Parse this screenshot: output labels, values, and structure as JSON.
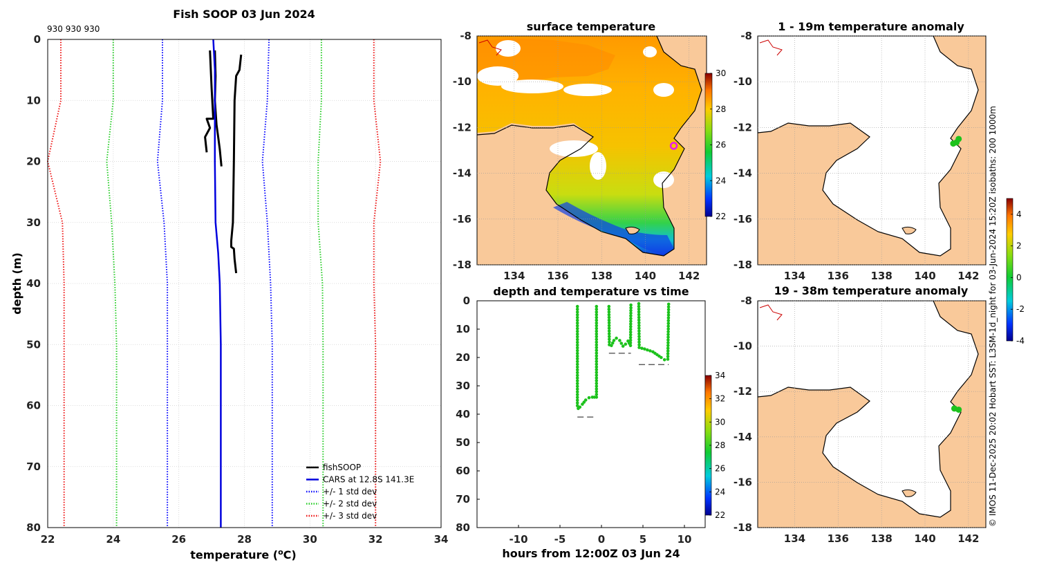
{
  "titles": {
    "profile": "Fish SOOP 03 Jun 2024",
    "sst": "surface temperature",
    "anom1": "1 - 19m temperature anomaly",
    "anom2": "19 - 38m temperature anomaly",
    "timeplot": "depth and temperature vs time"
  },
  "counts_label": "930 930 930",
  "credit": "© IMOS 11-Dec-2025 20:02 Hobart SST: L3SM-1d_night for 03-Jun-2024 15:20Z isobaths: 200  1000m",
  "colors": {
    "fishsoop": "#000000",
    "cars": "#0000dd",
    "std1": "#0000ff",
    "std2": "#22cc22",
    "std3": "#ee1111",
    "land": "#f9c99a",
    "point": "#1dc21d",
    "station_marker": "#e81ce8"
  },
  "chart_data": [
    {
      "id": "profile",
      "type": "line",
      "title": "Fish SOOP 03 Jun 2024",
      "xlabel": "temperature (",
      "xlabel_sup": "o",
      "xlabel_tail": "C)",
      "ylabel": "depth (m)",
      "xlim": [
        22,
        34
      ],
      "ylim": [
        0,
        80
      ],
      "xticks": [
        "22",
        "24",
        "26",
        "28",
        "30",
        "32",
        "34"
      ],
      "yticks": [
        "0",
        "10",
        "20",
        "30",
        "40",
        "50",
        "60",
        "70",
        "80"
      ],
      "grid": true,
      "legend_position": "bottom-right",
      "legend": [
        {
          "name": "fishSOOP",
          "style": "solid",
          "color": "#000000"
        },
        {
          "name": "CARS at 12.8S 141.3E",
          "style": "solid",
          "color": "#0000dd"
        },
        {
          "name": "+/- 1 std dev",
          "style": "dotted",
          "color": "#0000ff"
        },
        {
          "name": "+/- 2 std dev",
          "style": "dotted",
          "color": "#22cc22"
        },
        {
          "name": "+/- 3 std dev",
          "style": "dotted",
          "color": "#ee1111"
        }
      ],
      "series": [
        {
          "name": "fishSOOP cast 1",
          "color": "#000000",
          "width": 3,
          "points": [
            [
              26.95,
              1.8
            ],
            [
              27.0,
              8
            ],
            [
              27.05,
              13
            ],
            [
              26.85,
              13
            ],
            [
              26.95,
              14.5
            ],
            [
              26.8,
              16
            ],
            [
              26.85,
              18.5
            ]
          ]
        },
        {
          "name": "fishSOOP cast 2",
          "color": "#000000",
          "width": 3,
          "points": [
            [
              27.1,
              1.8
            ],
            [
              27.12,
              6
            ],
            [
              27.1,
              10
            ],
            [
              27.15,
              14
            ],
            [
              27.2,
              16
            ],
            [
              27.25,
              18
            ],
            [
              27.3,
              20.8
            ]
          ]
        },
        {
          "name": "fishSOOP cast 3",
          "color": "#000000",
          "width": 3,
          "points": [
            [
              27.9,
              2.5
            ],
            [
              27.85,
              5
            ],
            [
              27.75,
              6
            ],
            [
              27.7,
              10
            ],
            [
              27.68,
              20
            ],
            [
              27.65,
              30
            ],
            [
              27.6,
              33
            ],
            [
              27.6,
              34
            ],
            [
              27.68,
              34.3
            ],
            [
              27.7,
              36
            ],
            [
              27.75,
              38.3
            ]
          ]
        },
        {
          "name": "CARS at 12.8S 141.3E",
          "color": "#0000dd",
          "width": 2.5,
          "points": [
            [
              27.05,
              0
            ],
            [
              27.1,
              5
            ],
            [
              27.1,
              20
            ],
            [
              27.12,
              30
            ],
            [
              27.2,
              35
            ],
            [
              27.25,
              40
            ],
            [
              27.28,
              50
            ],
            [
              27.28,
              80
            ]
          ]
        },
        {
          "name": "+1 std dev",
          "color": "#0000ff",
          "width": 2,
          "dotted": true,
          "points": [
            [
              28.75,
              0
            ],
            [
              28.7,
              10
            ],
            [
              28.55,
              20
            ],
            [
              28.7,
              30
            ],
            [
              28.8,
              40
            ],
            [
              28.85,
              50
            ],
            [
              28.85,
              80
            ]
          ]
        },
        {
          "name": "-1 std dev",
          "color": "#0000ff",
          "width": 2,
          "dotted": true,
          "points": [
            [
              25.5,
              0
            ],
            [
              25.5,
              10
            ],
            [
              25.35,
              20
            ],
            [
              25.55,
              30
            ],
            [
              25.65,
              40
            ],
            [
              25.65,
              50
            ],
            [
              25.65,
              80
            ]
          ]
        },
        {
          "name": "+2 std dev",
          "color": "#22cc22",
          "width": 2,
          "dotted": true,
          "points": [
            [
              30.35,
              0
            ],
            [
              30.35,
              10
            ],
            [
              30.25,
              20
            ],
            [
              30.25,
              30
            ],
            [
              30.38,
              40
            ],
            [
              30.4,
              50
            ],
            [
              30.4,
              80
            ]
          ]
        },
        {
          "name": "-2 std dev",
          "color": "#22cc22",
          "width": 2,
          "dotted": true,
          "points": [
            [
              24.0,
              0
            ],
            [
              24.0,
              10
            ],
            [
              23.8,
              20
            ],
            [
              23.95,
              30
            ],
            [
              24.05,
              40
            ],
            [
              24.1,
              50
            ],
            [
              24.1,
              80
            ]
          ]
        },
        {
          "name": "+3 std dev",
          "color": "#ee1111",
          "width": 2,
          "dotted": true,
          "points": [
            [
              31.95,
              0
            ],
            [
              31.95,
              10
            ],
            [
              32.15,
              20
            ],
            [
              31.95,
              30
            ],
            [
              31.95,
              40
            ],
            [
              32.0,
              50
            ],
            [
              32.0,
              80
            ]
          ]
        },
        {
          "name": "-3 std dev",
          "color": "#ee1111",
          "width": 2,
          "dotted": true,
          "points": [
            [
              22.4,
              0
            ],
            [
              22.4,
              10
            ],
            [
              22.0,
              20
            ],
            [
              22.45,
              30
            ],
            [
              22.5,
              40
            ],
            [
              22.5,
              50
            ],
            [
              22.5,
              80
            ]
          ]
        }
      ]
    },
    {
      "id": "sst_map",
      "type": "heatmap",
      "title": "surface temperature",
      "xlim": [
        132.3,
        142.8
      ],
      "ylim": [
        -18,
        -8
      ],
      "xticks": [
        "134",
        "136",
        "138",
        "140",
        "142"
      ],
      "yticks": [
        "-8",
        "-10",
        "-12",
        "-14",
        "-16",
        "-18"
      ],
      "colorbar": {
        "min": 22,
        "max": 30,
        "ticks": [
          "30",
          "28",
          "26",
          "24",
          "22"
        ]
      },
      "station": [
        141.3,
        -12.8
      ]
    },
    {
      "id": "anom1_map",
      "type": "scatter",
      "title": "1 - 19m temperature anomaly",
      "xlim": [
        132.3,
        142.8
      ],
      "ylim": [
        -18,
        -8
      ],
      "xticks": [
        "134",
        "136",
        "138",
        "140",
        "142"
      ],
      "yticks": [
        "-8",
        "-10",
        "-12",
        "-14",
        "-16",
        "-18"
      ],
      "points": [
        [
          141.3,
          -12.7
        ],
        [
          141.45,
          -12.65
        ],
        [
          141.55,
          -12.5
        ]
      ],
      "point_values": [
        0,
        0,
        0
      ]
    },
    {
      "id": "anom2_map",
      "type": "scatter",
      "title": "19 - 38m temperature anomaly",
      "xlim": [
        132.3,
        142.8
      ],
      "ylim": [
        -18,
        -8
      ],
      "xticks": [
        "134",
        "136",
        "138",
        "140",
        "142"
      ],
      "yticks": [
        "-8",
        "-10",
        "-12",
        "-14",
        "-16",
        "-18"
      ],
      "points": [
        [
          141.35,
          -12.75
        ],
        [
          141.55,
          -12.8
        ]
      ],
      "point_values": [
        0,
        0
      ],
      "colorbar": {
        "min": -4,
        "max": 5,
        "ticks": [
          "4",
          "2",
          "0",
          "-2",
          "-4"
        ]
      }
    },
    {
      "id": "timeplot",
      "type": "scatter",
      "title": "depth and temperature vs time",
      "xlabel": "hours from 12:00Z 03 Jun 24",
      "xlim": [
        -15,
        12.5
      ],
      "ylim": [
        0,
        80
      ],
      "xticks": [
        "-10",
        "-5",
        "0",
        "5",
        "10"
      ],
      "yticks": [
        "0",
        "10",
        "20",
        "30",
        "40",
        "50",
        "60",
        "70",
        "80"
      ],
      "colorbar": {
        "min": 22,
        "max": 34,
        "ticks": [
          "34",
          "32",
          "30",
          "28",
          "26",
          "24",
          "22"
        ]
      },
      "casts": [
        {
          "pts": [
            [
              -2.9,
              2
            ],
            [
              -2.9,
              37
            ],
            [
              -2.8,
              38
            ],
            [
              -2.6,
              37.5
            ],
            [
              -2.3,
              36.5
            ],
            [
              -1.9,
              35
            ],
            [
              -1.5,
              34.2
            ],
            [
              -1.1,
              34
            ],
            [
              -0.6,
              34
            ],
            [
              -0.6,
              2
            ]
          ],
          "bottom": 41
        },
        {
          "pts": [
            [
              0.9,
              2
            ],
            [
              0.95,
              15.5
            ],
            [
              1.2,
              15.8
            ],
            [
              1.5,
              14
            ],
            [
              1.8,
              13.2
            ],
            [
              2.2,
              14
            ],
            [
              2.6,
              16
            ],
            [
              2.9,
              15.3
            ],
            [
              3.2,
              14.2
            ],
            [
              3.5,
              15.8
            ],
            [
              3.55,
              1.5
            ]
          ],
          "bottom": 18.5
        },
        {
          "pts": [
            [
              4.5,
              1
            ],
            [
              4.55,
              16.5
            ],
            [
              5.2,
              17
            ],
            [
              6.2,
              18
            ],
            [
              7.2,
              20
            ],
            [
              7.6,
              20.8
            ],
            [
              8.0,
              20.6
            ],
            [
              8.1,
              1.2
            ]
          ],
          "bottom": 22.5
        }
      ]
    }
  ]
}
